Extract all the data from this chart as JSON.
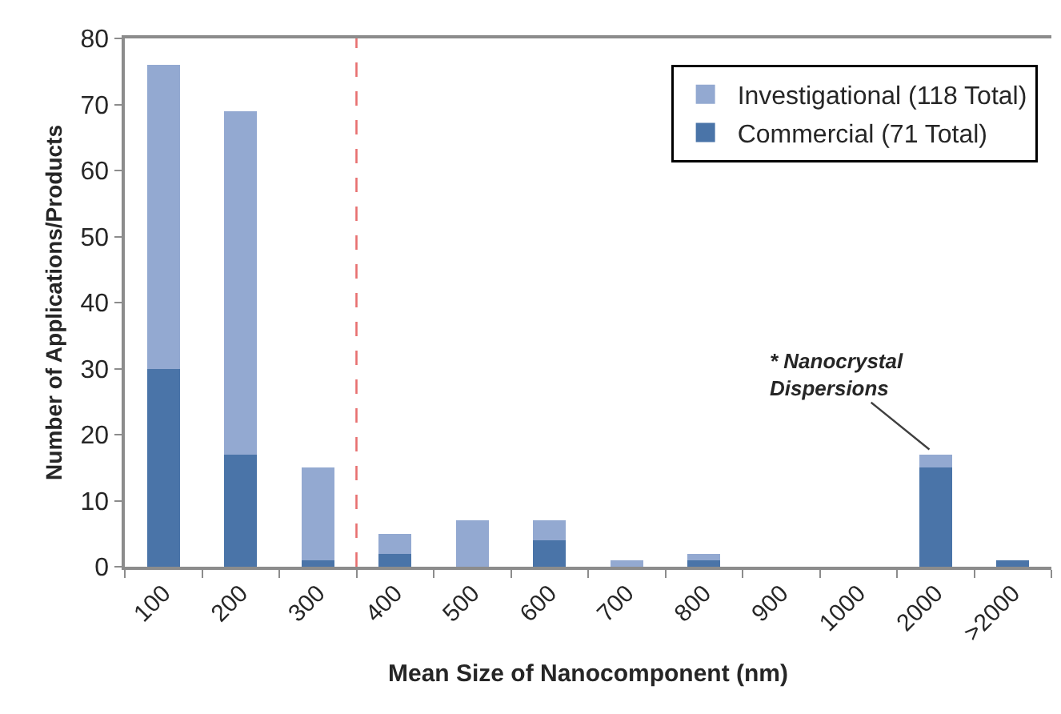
{
  "chart_data": {
    "type": "bar",
    "xlabel": "Mean Size of Nanocomponent (nm)",
    "ylabel": "Number of Applications/Products",
    "categories": [
      "100",
      "200",
      "300",
      "400",
      "500",
      "600",
      "700",
      "800",
      "900",
      "1000",
      "2000",
      ">2000"
    ],
    "stacked": true,
    "series": [
      {
        "name": "Commercial (71 Total)",
        "color": "#4a74a8",
        "values": [
          30,
          17,
          1,
          2,
          0,
          4,
          0,
          1,
          0,
          0,
          15,
          1
        ]
      },
      {
        "name": "Investigational (118 Total)",
        "color": "#93a9d1",
        "values": [
          46,
          52,
          14,
          3,
          7,
          3,
          1,
          1,
          0,
          0,
          2,
          0
        ]
      }
    ],
    "ylim": [
      0,
      80
    ],
    "yticks": [
      0,
      10,
      20,
      30,
      40,
      50,
      60,
      70,
      80
    ],
    "legend": "top right",
    "ref_lines": [
      {
        "axis": "x",
        "value": "300",
        "color": "#e87070",
        "line_style": "dashed"
      }
    ],
    "annotations": [
      {
        "text": "* Nanocrystal\nDispersions",
        "x": "2000",
        "y": 17
      }
    ]
  }
}
